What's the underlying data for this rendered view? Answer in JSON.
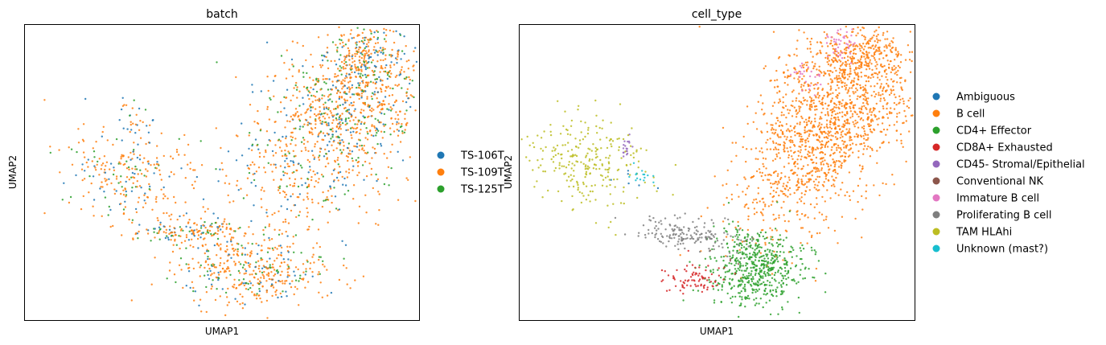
{
  "chart_data": [
    {
      "type": "scatter",
      "title": "batch",
      "xlabel": "UMAP1",
      "ylabel": "UMAP2",
      "xlim": [
        0,
        10
      ],
      "ylim": [
        0,
        10
      ],
      "grid": false,
      "legend_position": "right",
      "series": [
        {
          "name": "TS-106T",
          "color": "#1f77b4",
          "share": 0.18
        },
        {
          "name": "TS-109T",
          "color": "#ff7f0e",
          "share": 0.67
        },
        {
          "name": "TS-125T",
          "color": "#2ca02c",
          "share": 0.15
        }
      ],
      "clusters": [
        {
          "cx": 2.6,
          "cy": 5.0,
          "sx": 0.9,
          "sy": 0.7,
          "n": 260,
          "rot": -35
        },
        {
          "cx": 2.8,
          "cy": 6.8,
          "sx": 0.25,
          "sy": 0.4,
          "n": 25,
          "rot": 0
        },
        {
          "cx": 7.2,
          "cy": 5.5,
          "sx": 1.1,
          "sy": 1.6,
          "n": 500,
          "rot": -20
        },
        {
          "cx": 8.3,
          "cy": 7.4,
          "sx": 0.9,
          "sy": 1.2,
          "n": 700,
          "rot": -20
        },
        {
          "cx": 8.6,
          "cy": 9.0,
          "sx": 0.6,
          "sy": 0.5,
          "n": 200,
          "rot": 0
        },
        {
          "cx": 4.2,
          "cy": 3.0,
          "sx": 0.8,
          "sy": 0.25,
          "n": 170,
          "rot": 0
        },
        {
          "cx": 5.8,
          "cy": 1.7,
          "sx": 1.0,
          "sy": 0.6,
          "n": 420,
          "rot": 0
        }
      ]
    },
    {
      "type": "scatter",
      "title": "cell_type",
      "xlabel": "UMAP1",
      "ylabel": "UMAP2",
      "xlim": [
        0,
        10
      ],
      "ylim": [
        0,
        10
      ],
      "grid": false,
      "legend_position": "right",
      "series": [
        {
          "name": "Ambiguous",
          "color": "#1f77b4",
          "clusters": [
            {
              "cx": 2.7,
              "cy": 4.7,
              "sx": 0.3,
              "sy": 0.2,
              "n": 6,
              "rot": 0
            }
          ]
        },
        {
          "name": "B cell",
          "color": "#ff7f0e",
          "clusters": [
            {
              "cx": 7.2,
              "cy": 5.5,
              "sx": 0.8,
              "sy": 1.5,
              "n": 700,
              "rot": -20
            },
            {
              "cx": 8.3,
              "cy": 7.6,
              "sx": 0.9,
              "sy": 1.2,
              "n": 900,
              "rot": -20
            },
            {
              "cx": 8.7,
              "cy": 9.0,
              "sx": 0.5,
              "sy": 0.4,
              "n": 180,
              "rot": 0
            }
          ]
        },
        {
          "name": "CD4+ Effector",
          "color": "#2ca02c",
          "clusters": [
            {
              "cx": 6.0,
              "cy": 1.7,
              "sx": 0.6,
              "sy": 0.6,
              "n": 520,
              "rot": 0
            },
            {
              "cx": 5.6,
              "cy": 2.7,
              "sx": 0.3,
              "sy": 0.4,
              "n": 40,
              "rot": 0
            }
          ]
        },
        {
          "name": "CD8A+ Exhausted",
          "color": "#d62728",
          "clusters": [
            {
              "cx": 4.5,
              "cy": 1.4,
              "sx": 0.4,
              "sy": 0.25,
              "n": 80,
              "rot": 0
            }
          ]
        },
        {
          "name": "CD45- Stromal/Epithelial",
          "color": "#9467bd",
          "clusters": [
            {
              "cx": 2.7,
              "cy": 5.8,
              "sx": 0.08,
              "sy": 0.3,
              "n": 18,
              "rot": 0
            }
          ]
        },
        {
          "name": "Conventional NK",
          "color": "#8c564b",
          "clusters": [
            {
              "cx": 5.3,
              "cy": 2.3,
              "sx": 0.2,
              "sy": 0.2,
              "n": 4,
              "rot": 0
            }
          ]
        },
        {
          "name": "Immature B cell",
          "color": "#e377c2",
          "clusters": [
            {
              "cx": 8.1,
              "cy": 9.4,
              "sx": 0.2,
              "sy": 0.3,
              "n": 40,
              "rot": 0
            },
            {
              "cx": 7.3,
              "cy": 8.3,
              "sx": 0.2,
              "sy": 0.3,
              "n": 25,
              "rot": 0
            }
          ]
        },
        {
          "name": "Proliferating B cell",
          "color": "#7f7f7f",
          "clusters": [
            {
              "cx": 4.3,
              "cy": 2.9,
              "sx": 0.7,
              "sy": 0.25,
              "n": 170,
              "rot": -10
            }
          ]
        },
        {
          "name": "TAM HLAhi",
          "color": "#bcbd22",
          "clusters": [
            {
              "cx": 1.7,
              "cy": 5.4,
              "sx": 0.8,
              "sy": 0.7,
              "n": 260,
              "rot": -40
            }
          ]
        },
        {
          "name": "Unknown (mast?)",
          "color": "#17becf",
          "clusters": [
            {
              "cx": 3.0,
              "cy": 4.9,
              "sx": 0.15,
              "sy": 0.15,
              "n": 15,
              "rot": 0
            }
          ]
        }
      ]
    }
  ]
}
